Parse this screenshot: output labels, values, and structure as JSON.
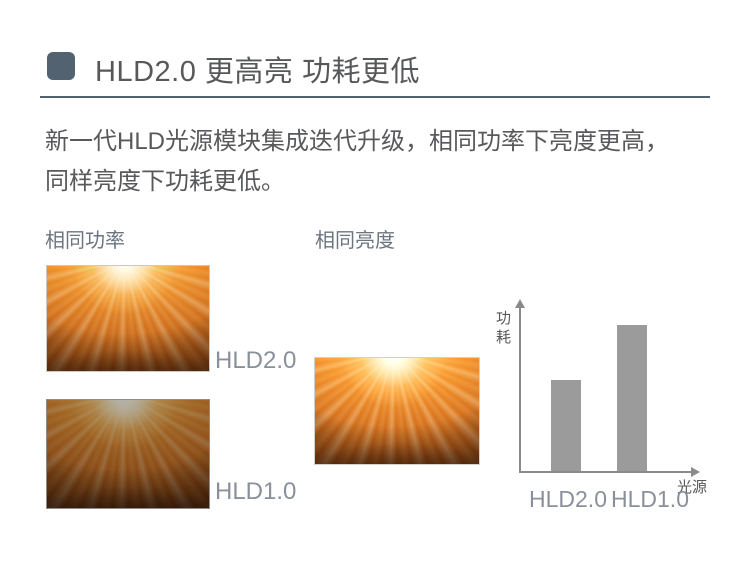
{
  "page": {
    "title": "HLD2.0 更高亮 功耗更低",
    "description_line1": "新一代HLD光源模块集成迭代升级，相同功率下亮度更高，",
    "description_line2": "同样亮度下功耗更低。"
  },
  "same_power_section": {
    "label": "相同功率",
    "image_captions": [
      "HLD2.0",
      "HLD1.0"
    ]
  },
  "same_brightness_section": {
    "label": "相同亮度"
  },
  "chart_data": {
    "type": "bar",
    "categories": [
      "HLD2.0",
      "HLD1.0"
    ],
    "values": [
      63,
      100
    ],
    "ylabel": "功耗",
    "xlabel": "光源",
    "title": "",
    "grid": false,
    "axis_ticks": false,
    "ylim": [
      0,
      110
    ]
  },
  "colors": {
    "accent_slate": "#536271",
    "body_text": "#58595b",
    "section_label": "#6b7580",
    "caption_gray": "#8a909a",
    "bar_gray": "#9b9b9b",
    "axis_gray": "#8a8a8a"
  }
}
